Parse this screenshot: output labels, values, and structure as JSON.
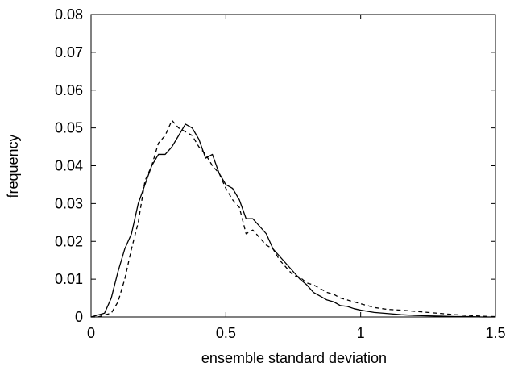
{
  "chart_data": {
    "type": "line",
    "title": "",
    "xlabel": "ensemble standard deviation",
    "ylabel": "frequency",
    "xlim": [
      0,
      1.5
    ],
    "ylim": [
      0,
      0.08
    ],
    "x_ticks": [
      0,
      0.5,
      1,
      1.5
    ],
    "x_tick_labels": [
      "0",
      "0.5",
      "1",
      "1.5"
    ],
    "y_ticks": [
      0,
      0.01,
      0.02,
      0.03,
      0.04,
      0.05,
      0.06,
      0.07,
      0.08
    ],
    "y_tick_labels": [
      "0",
      "0.01",
      "0.02",
      "0.03",
      "0.04",
      "0.05",
      "0.06",
      "0.07",
      "0.08"
    ],
    "grid": false,
    "legend": "none",
    "series": [
      {
        "style": "solid",
        "color": "#000000",
        "x": [
          0.0,
          0.025,
          0.05,
          0.075,
          0.1,
          0.125,
          0.15,
          0.175,
          0.2,
          0.225,
          0.25,
          0.275,
          0.3,
          0.325,
          0.35,
          0.375,
          0.4,
          0.425,
          0.45,
          0.475,
          0.5,
          0.525,
          0.55,
          0.575,
          0.6,
          0.625,
          0.65,
          0.675,
          0.7,
          0.725,
          0.75,
          0.775,
          0.8,
          0.825,
          0.85,
          0.875,
          0.9,
          0.925,
          0.95,
          0.975,
          1.0,
          1.05,
          1.1,
          1.15,
          1.2,
          1.25,
          1.3,
          1.35,
          1.4,
          1.45,
          1.5
        ],
        "values": [
          0.0,
          0.0005,
          0.001,
          0.005,
          0.012,
          0.018,
          0.022,
          0.03,
          0.035,
          0.04,
          0.043,
          0.043,
          0.045,
          0.048,
          0.051,
          0.05,
          0.047,
          0.042,
          0.043,
          0.038,
          0.035,
          0.034,
          0.031,
          0.026,
          0.026,
          0.024,
          0.022,
          0.018,
          0.016,
          0.014,
          0.012,
          0.01,
          0.0085,
          0.0065,
          0.0055,
          0.0045,
          0.004,
          0.003,
          0.0028,
          0.0022,
          0.0018,
          0.0012,
          0.0009,
          0.0006,
          0.0004,
          0.0003,
          0.0002,
          0.0001,
          0.0001,
          0.0,
          0.0
        ]
      },
      {
        "style": "dashed",
        "color": "#000000",
        "x": [
          0.0,
          0.025,
          0.05,
          0.075,
          0.1,
          0.125,
          0.15,
          0.175,
          0.2,
          0.225,
          0.25,
          0.275,
          0.3,
          0.325,
          0.35,
          0.375,
          0.4,
          0.425,
          0.45,
          0.475,
          0.5,
          0.525,
          0.55,
          0.575,
          0.6,
          0.625,
          0.65,
          0.675,
          0.7,
          0.725,
          0.75,
          0.775,
          0.8,
          0.825,
          0.85,
          0.875,
          0.9,
          0.925,
          0.95,
          0.975,
          1.0,
          1.05,
          1.1,
          1.15,
          1.2,
          1.25,
          1.3,
          1.35,
          1.4,
          1.45,
          1.5
        ],
        "values": [
          0.0,
          0.0,
          0.0005,
          0.001,
          0.004,
          0.01,
          0.018,
          0.025,
          0.036,
          0.04,
          0.046,
          0.048,
          0.052,
          0.05,
          0.049,
          0.048,
          0.045,
          0.043,
          0.04,
          0.038,
          0.034,
          0.031,
          0.029,
          0.022,
          0.023,
          0.021,
          0.019,
          0.018,
          0.015,
          0.013,
          0.011,
          0.0105,
          0.009,
          0.0085,
          0.0075,
          0.0065,
          0.006,
          0.005,
          0.0045,
          0.004,
          0.0035,
          0.0025,
          0.002,
          0.0018,
          0.0015,
          0.0012,
          0.0009,
          0.0006,
          0.0004,
          0.0002,
          0.0001
        ]
      }
    ]
  }
}
